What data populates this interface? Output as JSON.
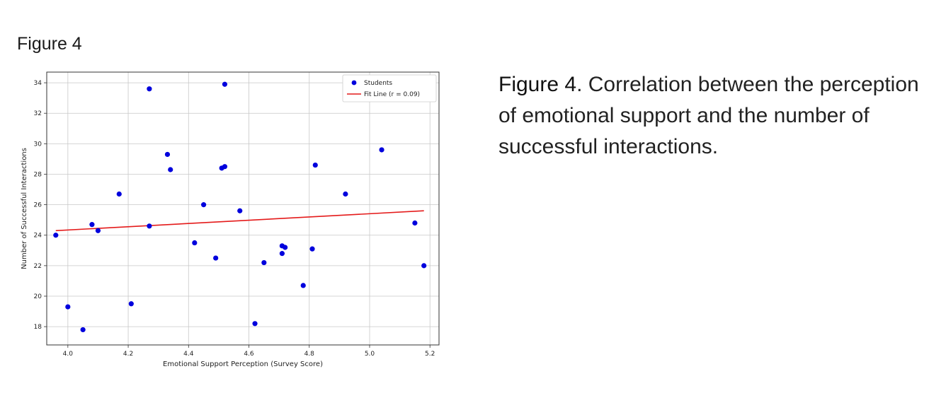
{
  "figure_heading": "Figure 4",
  "caption": {
    "label": "Figure 4",
    "text": ". Correlation between the perception of emotional support and the number of successful interactions."
  },
  "chart_data": {
    "type": "scatter",
    "xlabel": "Emotional Support Perception (Survey Score)",
    "ylabel": "Number of Successful Interactions",
    "xlim": [
      3.93,
      5.23
    ],
    "ylim": [
      16.8,
      34.7
    ],
    "xticks": [
      4.0,
      4.2,
      4.4,
      4.6,
      4.8,
      5.0,
      5.2
    ],
    "yticks": [
      18,
      20,
      22,
      24,
      26,
      28,
      30,
      32,
      34
    ],
    "xtick_labels": [
      "4.0",
      "4.2",
      "4.4",
      "4.6",
      "4.8",
      "5.0",
      "5.2"
    ],
    "ytick_labels": [
      "18",
      "20",
      "22",
      "24",
      "26",
      "28",
      "30",
      "32",
      "34"
    ],
    "grid": true,
    "legend_position": "top-right",
    "series": [
      {
        "name": "Students",
        "kind": "scatter",
        "color": "#0000dd",
        "points": [
          [
            3.96,
            24.0
          ],
          [
            4.0,
            19.3
          ],
          [
            4.05,
            17.8
          ],
          [
            4.08,
            24.7
          ],
          [
            4.1,
            24.3
          ],
          [
            4.17,
            26.7
          ],
          [
            4.21,
            19.5
          ],
          [
            4.27,
            33.6
          ],
          [
            4.27,
            24.6
          ],
          [
            4.33,
            29.3
          ],
          [
            4.34,
            28.3
          ],
          [
            4.42,
            23.5
          ],
          [
            4.45,
            26.0
          ],
          [
            4.49,
            22.5
          ],
          [
            4.51,
            28.4
          ],
          [
            4.52,
            28.5
          ],
          [
            4.52,
            33.9
          ],
          [
            4.57,
            25.6
          ],
          [
            4.62,
            18.2
          ],
          [
            4.65,
            22.2
          ],
          [
            4.71,
            23.3
          ],
          [
            4.71,
            22.8
          ],
          [
            4.72,
            23.2
          ],
          [
            4.78,
            20.7
          ],
          [
            4.81,
            23.1
          ],
          [
            4.82,
            28.6
          ],
          [
            4.92,
            26.7
          ],
          [
            5.04,
            29.6
          ],
          [
            5.15,
            24.8
          ],
          [
            5.18,
            22.0
          ]
        ]
      },
      {
        "name": "Fit Line (r = 0.09)",
        "kind": "line",
        "color": "#e41a1a",
        "points": [
          [
            3.96,
            24.3
          ],
          [
            5.18,
            25.6
          ]
        ]
      }
    ]
  }
}
